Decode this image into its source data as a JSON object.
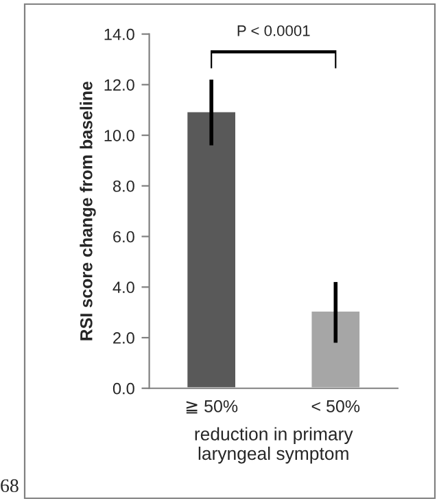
{
  "chart_data": {
    "type": "bar",
    "xlabel": "reduction in primary\nlaryngeal symptom",
    "ylabel": "RSI score change from baseline",
    "categories": [
      "≧ 50%",
      "< 50%"
    ],
    "values": [
      10.95,
      3.07
    ],
    "colors": [
      "#595959",
      "#a6a6a6"
    ],
    "errors": [
      [
        9.6,
        12.2
      ],
      [
        1.8,
        4.2
      ]
    ],
    "ylim": [
      0,
      14
    ],
    "yticks": [
      {
        "value": 0,
        "label": "0.0"
      },
      {
        "value": 2,
        "label": "2.0"
      },
      {
        "value": 4,
        "label": "4.0"
      },
      {
        "value": 6,
        "label": "6.0"
      },
      {
        "value": 8,
        "label": "8.0"
      },
      {
        "value": 10,
        "label": "10.0"
      },
      {
        "value": 12,
        "label": "12.0"
      },
      {
        "value": 14,
        "label": "14.0"
      }
    ],
    "annotations": [
      "P < 0.0001",
      "68"
    ],
    "grid": false,
    "legend": false
  }
}
